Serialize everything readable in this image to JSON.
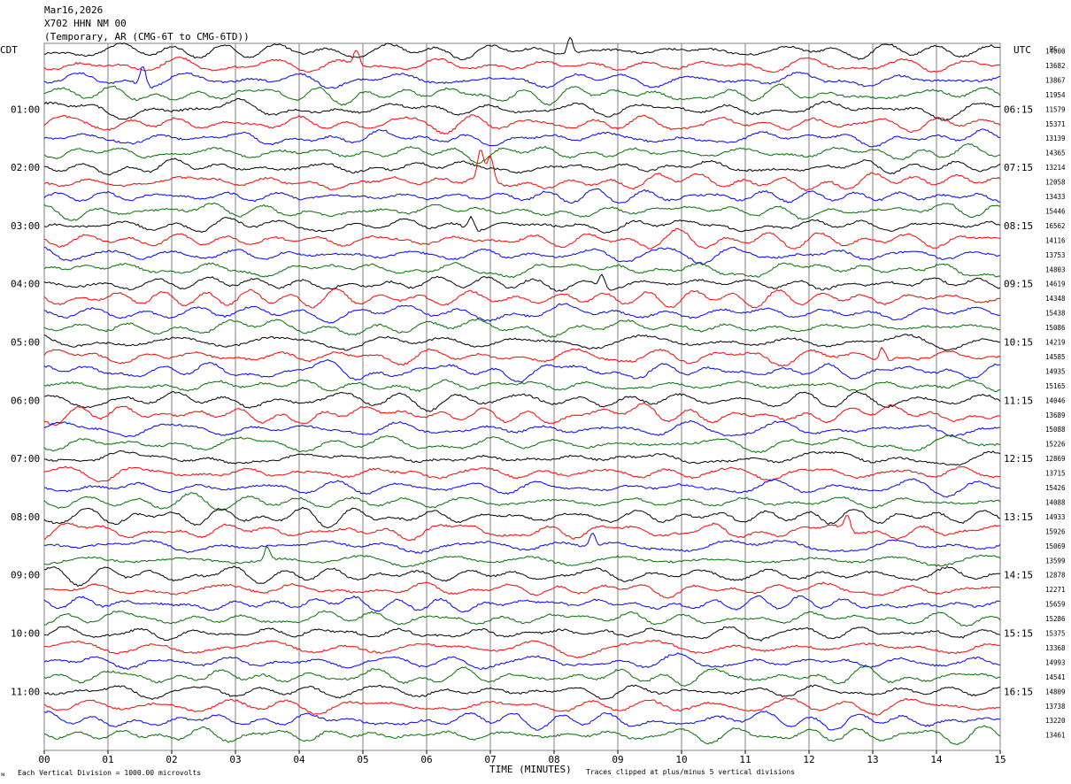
{
  "header": {
    "date": "Mar16,2026",
    "station": "X702 HHN NM 00",
    "location": "(Temporary, AR (CMG-6T to CMG-6TD))"
  },
  "left_axis_label": "CDT",
  "right_axis_label": "UTC",
  "dc_label": "DC",
  "footer": {
    "scale_note": "Each Vertical Division = 1000.00 microvolts",
    "x_title": "TIME (MINUTES)",
    "clip_note": "Traces clipped at plus/minus 5 vertical divisions"
  },
  "colors": {
    "cycle": [
      "#000000",
      "#ff0000",
      "#0000ff",
      "#007000"
    ],
    "grid": "#808080",
    "background": "#ffffff"
  },
  "chart_data": {
    "type": "line",
    "description_type": "helicorder seismogram",
    "xlabel": "TIME (MINUTES)",
    "xlim": [
      0,
      15
    ],
    "x_ticks": [
      "00",
      "01",
      "02",
      "03",
      "04",
      "05",
      "06",
      "07",
      "08",
      "09",
      "10",
      "11",
      "12",
      "13",
      "14",
      "15"
    ],
    "lines_count": 48,
    "left_time_labels": [
      {
        "row": 4,
        "label": "01:00"
      },
      {
        "row": 8,
        "label": "02:00"
      },
      {
        "row": 12,
        "label": "03:00"
      },
      {
        "row": 16,
        "label": "04:00"
      },
      {
        "row": 20,
        "label": "05:00"
      },
      {
        "row": 24,
        "label": "06:00"
      },
      {
        "row": 28,
        "label": "07:00"
      },
      {
        "row": 32,
        "label": "08:00"
      },
      {
        "row": 36,
        "label": "09:00"
      },
      {
        "row": 40,
        "label": "10:00"
      },
      {
        "row": 44,
        "label": "11:00"
      }
    ],
    "right_time_labels": [
      {
        "row": 4,
        "label": "06:15"
      },
      {
        "row": 8,
        "label": "07:15"
      },
      {
        "row": 12,
        "label": "08:15"
      },
      {
        "row": 16,
        "label": "09:15"
      },
      {
        "row": 20,
        "label": "10:15"
      },
      {
        "row": 24,
        "label": "11:15"
      },
      {
        "row": 28,
        "label": "12:15"
      },
      {
        "row": 32,
        "label": "13:15"
      },
      {
        "row": 36,
        "label": "14:15"
      },
      {
        "row": 40,
        "label": "15:15"
      },
      {
        "row": 44,
        "label": "16:15"
      }
    ],
    "dc_offsets": [
      "14000",
      "13682",
      "13867",
      "11954",
      "11579",
      "15371",
      "13139",
      "14365",
      "13214",
      "12058",
      "13433",
      "15446",
      "16562",
      "14116",
      "13753",
      "14803",
      "14619",
      "14348",
      "15438",
      "15086",
      "14219",
      "14585",
      "14935",
      "15165",
      "14046",
      "13689",
      "15088",
      "15226",
      "12869",
      "13715",
      "15426",
      "14088",
      "14933",
      "15926",
      "15069",
      "13599",
      "12878",
      "12271",
      "15659",
      "15286",
      "15375",
      "13368",
      "14993",
      "14541",
      "14809",
      "13738",
      "13220",
      "13461"
    ],
    "events": [
      {
        "row": 0,
        "minute": 8.25,
        "amplitude": 1.2
      },
      {
        "row": 2,
        "minute": 1.55,
        "amplitude": 1.5
      },
      {
        "row": 1,
        "minute": 4.9,
        "amplitude": 1.2
      },
      {
        "row": 9,
        "minute": 6.85,
        "amplitude": 2.0
      },
      {
        "row": 9,
        "minute": 7.0,
        "amplitude": 1.6
      },
      {
        "row": 12,
        "minute": 6.7,
        "amplitude": 1.0
      },
      {
        "row": 16,
        "minute": 8.75,
        "amplitude": 1.0
      },
      {
        "row": 21,
        "minute": 13.15,
        "amplitude": 1.0
      },
      {
        "row": 33,
        "minute": 12.6,
        "amplitude": 1.2
      },
      {
        "row": 34,
        "minute": 8.6,
        "amplitude": 1.0
      },
      {
        "row": 35,
        "minute": 3.5,
        "amplitude": 1.0
      }
    ]
  }
}
